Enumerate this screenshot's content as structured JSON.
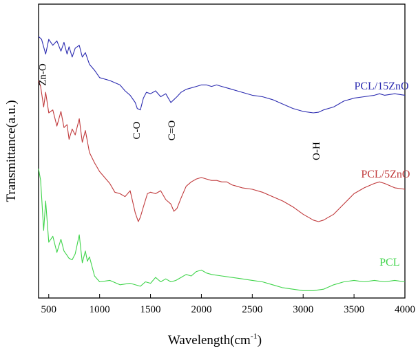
{
  "chart_data": {
    "type": "line",
    "title": "",
    "xlabel": "Wavelength(cm",
    "xlabel_sup": "-1",
    "xlabel_close": ")",
    "ylabel": "Transmittance(a.u.)",
    "xlim": [
      400,
      4000
    ],
    "ylim": [
      0,
      10
    ],
    "y_tick_labels": false,
    "grid": false,
    "x_ticks": [
      500,
      1000,
      1500,
      2000,
      2500,
      3000,
      3500,
      4000
    ],
    "x_tick_labels": [
      "500",
      "1000",
      "1500",
      "2000",
      "2500",
      "3000",
      "3500",
      "4000"
    ],
    "series": [
      {
        "name": "PCL/15ZnO",
        "color": "#2b2bb0",
        "x": [
          400,
          430,
          470,
          500,
          540,
          580,
          620,
          650,
          680,
          700,
          730,
          760,
          800,
          830,
          860,
          900,
          950,
          1000,
          1100,
          1200,
          1250,
          1300,
          1350,
          1370,
          1400,
          1430,
          1460,
          1500,
          1550,
          1600,
          1650,
          1700,
          1730,
          1760,
          1800,
          1850,
          1900,
          1950,
          2000,
          2050,
          2100,
          2150,
          2200,
          2250,
          2300,
          2350,
          2400,
          2500,
          2600,
          2700,
          2800,
          2900,
          3000,
          3100,
          3150,
          3200,
          3300,
          3400,
          3500,
          3600,
          3700,
          3750,
          3800,
          3900,
          4000
        ],
        "y": [
          8.9,
          8.8,
          8.3,
          8.8,
          8.6,
          8.75,
          8.4,
          8.7,
          8.3,
          8.55,
          8.2,
          8.5,
          8.6,
          8.2,
          8.35,
          7.95,
          7.75,
          7.5,
          7.4,
          7.25,
          7.05,
          6.9,
          6.65,
          6.45,
          6.4,
          6.8,
          7.0,
          6.95,
          7.05,
          6.85,
          6.95,
          6.65,
          6.75,
          6.85,
          7.0,
          7.1,
          7.15,
          7.2,
          7.25,
          7.25,
          7.2,
          7.25,
          7.2,
          7.15,
          7.1,
          7.05,
          7.0,
          6.9,
          6.85,
          6.75,
          6.6,
          6.45,
          6.35,
          6.3,
          6.32,
          6.4,
          6.5,
          6.7,
          6.8,
          6.85,
          6.9,
          6.95,
          6.9,
          6.95,
          6.9
        ]
      },
      {
        "name": "PCL/5ZnO",
        "color": "#c0393b",
        "x": [
          400,
          420,
          450,
          470,
          500,
          540,
          580,
          620,
          650,
          680,
          700,
          730,
          760,
          800,
          830,
          860,
          900,
          950,
          1000,
          1100,
          1150,
          1200,
          1250,
          1300,
          1350,
          1380,
          1400,
          1430,
          1470,
          1500,
          1550,
          1600,
          1650,
          1700,
          1730,
          1760,
          1800,
          1850,
          1900,
          1950,
          2000,
          2050,
          2100,
          2150,
          2200,
          2250,
          2300,
          2350,
          2400,
          2500,
          2600,
          2700,
          2800,
          2900,
          3000,
          3100,
          3150,
          3200,
          3300,
          3400,
          3500,
          3600,
          3700,
          3750,
          3800,
          3900,
          4000
        ],
        "y": [
          7.4,
          7.2,
          6.5,
          7.0,
          6.3,
          6.4,
          5.85,
          6.35,
          5.8,
          5.9,
          5.4,
          5.75,
          5.55,
          6.1,
          5.3,
          5.7,
          4.95,
          4.6,
          4.3,
          3.9,
          3.6,
          3.55,
          3.45,
          3.65,
          2.9,
          2.6,
          2.75,
          3.1,
          3.55,
          3.6,
          3.55,
          3.65,
          3.35,
          3.2,
          2.95,
          3.05,
          3.4,
          3.8,
          3.95,
          4.05,
          4.1,
          4.05,
          4.0,
          4.0,
          3.95,
          3.95,
          3.85,
          3.8,
          3.75,
          3.7,
          3.6,
          3.45,
          3.3,
          3.1,
          2.85,
          2.65,
          2.6,
          2.65,
          2.85,
          3.2,
          3.55,
          3.75,
          3.9,
          3.95,
          3.9,
          3.75,
          3.7
        ]
      },
      {
        "name": "PCL",
        "color": "#3fd44a",
        "x": [
          400,
          420,
          450,
          470,
          500,
          540,
          580,
          620,
          650,
          680,
          700,
          730,
          760,
          800,
          830,
          860,
          880,
          900,
          950,
          1000,
          1100,
          1200,
          1300,
          1400,
          1450,
          1500,
          1550,
          1600,
          1650,
          1700,
          1750,
          1800,
          1850,
          1900,
          1950,
          2000,
          2050,
          2100,
          2200,
          2300,
          2400,
          2500,
          2600,
          2700,
          2800,
          2900,
          3000,
          3100,
          3200,
          3300,
          3400,
          3500,
          3600,
          3700,
          3800,
          3900,
          4000
        ],
        "y": [
          4.4,
          4.0,
          2.3,
          3.3,
          1.9,
          2.1,
          1.55,
          2.0,
          1.6,
          1.45,
          1.35,
          1.3,
          1.5,
          2.15,
          1.2,
          1.6,
          1.25,
          1.4,
          0.75,
          0.55,
          0.6,
          0.45,
          0.5,
          0.4,
          0.55,
          0.5,
          0.7,
          0.55,
          0.65,
          0.55,
          0.6,
          0.7,
          0.8,
          0.75,
          0.9,
          0.95,
          0.85,
          0.8,
          0.75,
          0.7,
          0.65,
          0.6,
          0.55,
          0.45,
          0.35,
          0.3,
          0.25,
          0.25,
          0.3,
          0.45,
          0.55,
          0.6,
          0.55,
          0.6,
          0.55,
          0.6,
          0.55
        ]
      }
    ],
    "series_labels": [
      {
        "text": "PCL/15ZnO",
        "x": 3770,
        "y": 7.1,
        "color": "#2b2bb0"
      },
      {
        "text": "PCL/5ZnO",
        "x": 3810,
        "y": 4.1,
        "color": "#c0393b"
      },
      {
        "text": "PCL",
        "x": 3850,
        "y": 1.1,
        "color": "#3fd44a"
      }
    ],
    "annotations": [
      {
        "text": "Zn-O",
        "x": 470,
        "y": 7.6,
        "rotate": -90
      },
      {
        "text": "C-O",
        "x": 1395,
        "y": 5.7,
        "rotate": -90
      },
      {
        "text": "C=O",
        "x": 1740,
        "y": 5.7,
        "rotate": -90
      },
      {
        "text": "O-H",
        "x": 3160,
        "y": 5.0,
        "rotate": -90
      }
    ]
  }
}
